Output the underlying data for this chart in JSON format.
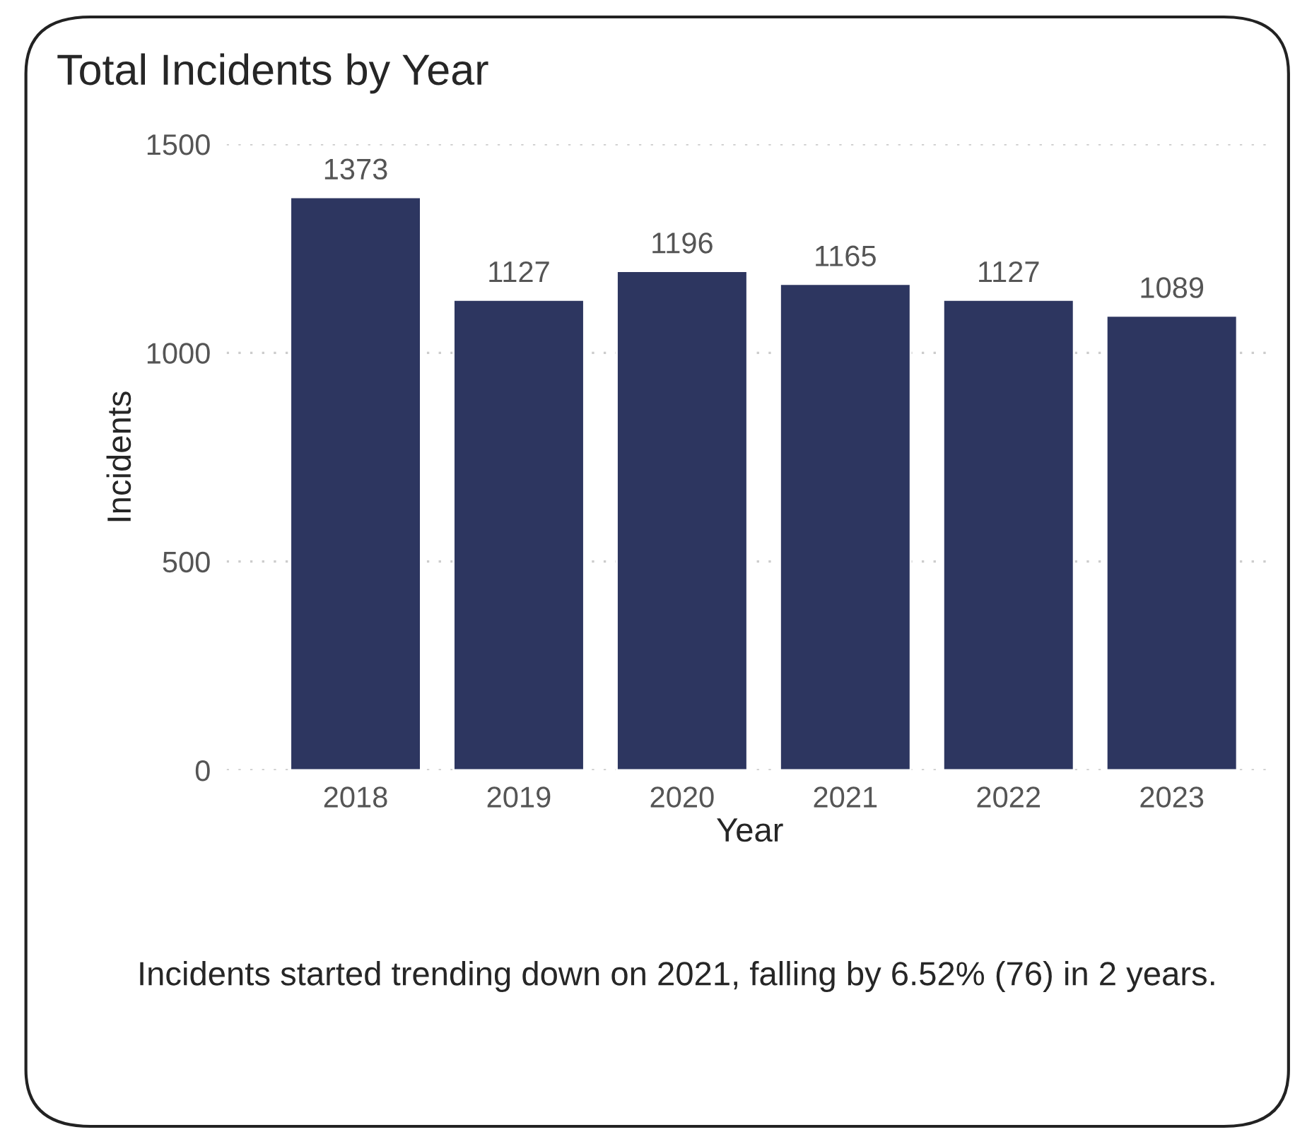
{
  "chart_data": {
    "type": "bar",
    "title": "Total Incidents by Year",
    "xlabel": "Year",
    "ylabel": "Incidents",
    "categories": [
      "2018",
      "2019",
      "2020",
      "2021",
      "2022",
      "2023"
    ],
    "values": [
      1373,
      1127,
      1196,
      1165,
      1127,
      1089
    ],
    "color": "#2d3660",
    "ylim": [
      0,
      1500
    ],
    "yticks": [
      0,
      500,
      1000,
      1500
    ],
    "grid": "y",
    "data_labels": true,
    "annotations": [
      "Incidents started trending down on 2021, falling by 6.52% (76) in 2 years."
    ]
  }
}
